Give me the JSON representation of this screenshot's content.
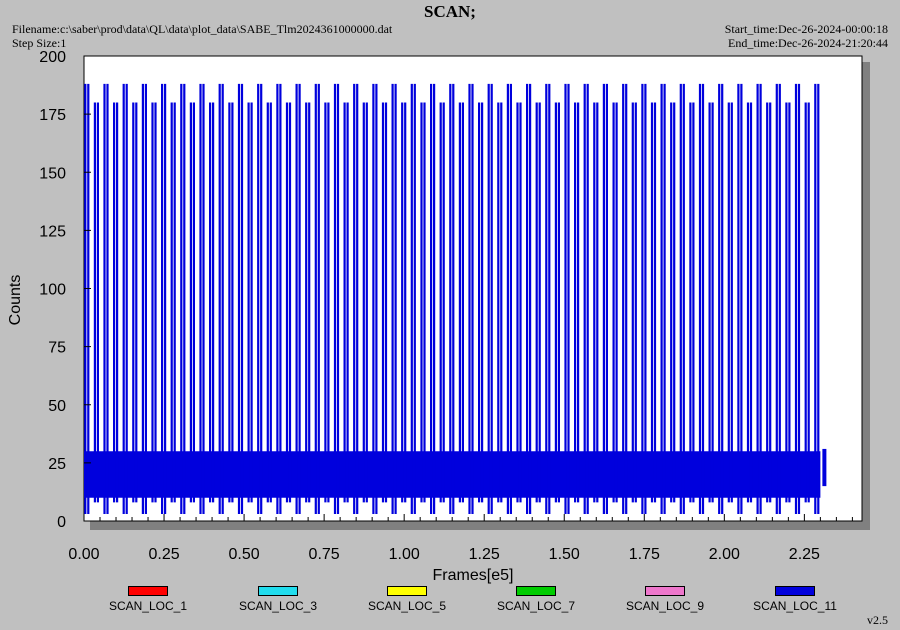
{
  "header": {
    "title": "SCAN;",
    "filename": "Filename:c:\\saber\\prod\\data\\QL\\data\\plot_data\\SABE_Tlm2024361000000.dat",
    "step_size": "Step Size:1",
    "start_time": "Start_time:Dec-26-2024-00:00:18",
    "end_time": "End_time:Dec-26-2024-21:20:44"
  },
  "footer": {
    "version": "v2.5"
  },
  "chart_data": {
    "type": "line",
    "xlabel": "Frames[e5]",
    "ylabel": "Counts",
    "xlim": [
      0.0,
      2.43
    ],
    "ylim": [
      0,
      200
    ],
    "xticks": [
      "0.00",
      "0.25",
      "0.50",
      "0.75",
      "1.00",
      "1.25",
      "1.50",
      "1.75",
      "2.00",
      "2.25"
    ],
    "xtick_values": [
      0.0,
      0.25,
      0.5,
      0.75,
      1.0,
      1.25,
      1.5,
      1.75,
      2.0,
      2.25
    ],
    "yticks": [
      "0",
      "25",
      "50",
      "75",
      "100",
      "125",
      "150",
      "175",
      "200"
    ],
    "ytick_values": [
      0,
      25,
      50,
      75,
      100,
      125,
      150,
      175,
      200
    ],
    "legend_position": "bottom",
    "series": [
      {
        "name": "SCAN_LOC_1",
        "color": "#ff0000",
        "x_range": [
          0.0,
          2.3
        ],
        "baseline_band": [
          10,
          30
        ]
      },
      {
        "name": "SCAN_LOC_3",
        "color": "#22ddee",
        "x_range": [
          0.0,
          2.3
        ],
        "baseline_band": [
          10,
          30
        ]
      },
      {
        "name": "SCAN_LOC_5",
        "color": "#ffff00",
        "x_range": [
          0.0,
          2.3
        ],
        "baseline_band": [
          10,
          30
        ]
      },
      {
        "name": "SCAN_LOC_7",
        "color": "#00cc00",
        "x_range": [
          0.0,
          2.3
        ],
        "baseline_band": [
          10,
          30
        ]
      },
      {
        "name": "SCAN_LOC_9",
        "color": "#ee77cc",
        "x_range": [
          0.0,
          2.3
        ],
        "baseline_band": [
          10,
          30
        ]
      },
      {
        "name": "SCAN_LOC_11",
        "color": "#0000dd",
        "x_range": [
          0.0,
          2.3
        ],
        "baseline_band": [
          10,
          30
        ],
        "scan_period": 0.03,
        "peak_levels": [
          188,
          180
        ],
        "trough_levels": [
          3,
          8
        ]
      }
    ]
  }
}
